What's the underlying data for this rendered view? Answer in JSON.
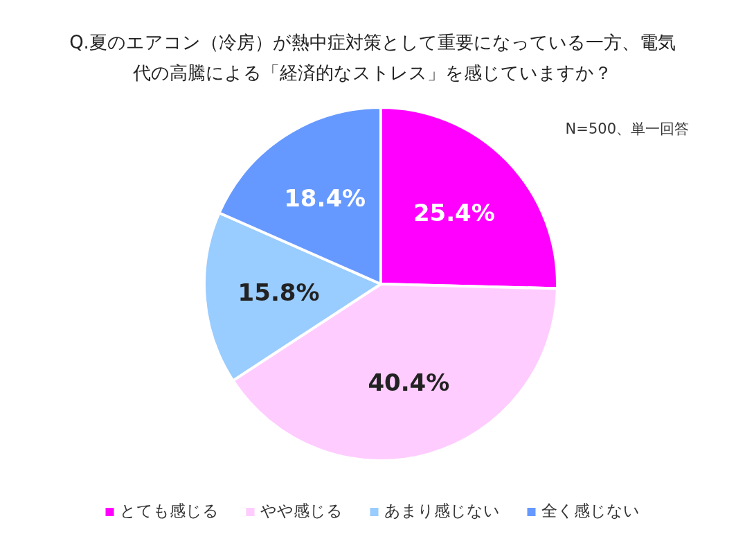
{
  "chart_data": {
    "type": "pie",
    "title": "Q.夏のエアコン（冷房）が熱中症対策として重要になっている一方、電気代の高騰による「経済的なストレス」を感じていますか？",
    "annotations": [
      "N=500、単一回答"
    ],
    "categories": [
      "とても感じる",
      "やや感じる",
      "あまり感じない",
      "全く感じない"
    ],
    "values": [
      25.4,
      40.4,
      15.8,
      18.4
    ],
    "colors": [
      "#ff00ff",
      "#ffccff",
      "#99ccff",
      "#6699ff"
    ],
    "value_labels": [
      "25.4%",
      "40.4%",
      "15.8%",
      "18.4%"
    ],
    "legend": "bottom"
  }
}
